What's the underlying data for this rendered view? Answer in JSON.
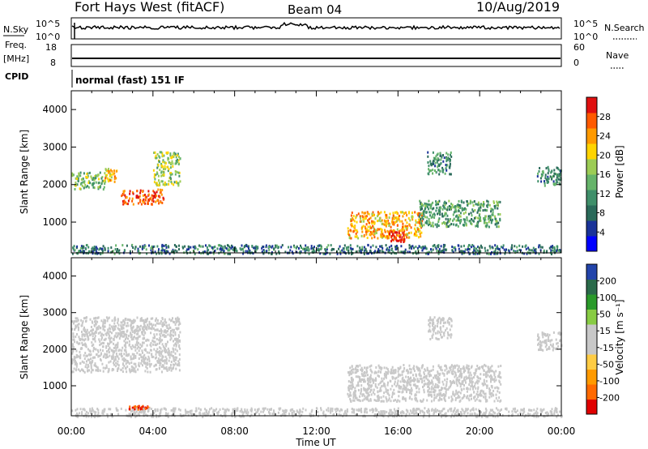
{
  "header": {
    "title": "Fort Hays West (fitACF)",
    "beam": "Beam 04",
    "date": "10/Aug/2019"
  },
  "noise_panel": {
    "label": "N.Sky",
    "left_ticks": [
      "10^5",
      "10^0"
    ],
    "right_ticks": [
      "10^5",
      "10^0"
    ],
    "right_label": "N.Search"
  },
  "freq_panel": {
    "label_line1": "Freq.",
    "label_line2": "[MHz]",
    "left_ticks": [
      "18",
      "8"
    ],
    "right_ticks": [
      "60",
      "0"
    ],
    "right_label": "Nave"
  },
  "cpid": {
    "label": "CPID",
    "text": "normal (fast) 151 IF"
  },
  "colors": {
    "power_scale": [
      "#0000ff",
      "#1a3399",
      "#2a6a5a",
      "#3f8f6a",
      "#66b46a",
      "#9ccc55",
      "#ffd400",
      "#ff9a00",
      "#ff5a00",
      "#e01010"
    ],
    "velocity_scale": [
      "#e00000",
      "#ff6a00",
      "#ff9a00",
      "#ffcc44",
      "#c8c8c8",
      "#c8c8c8",
      "#88cc44",
      "#2a9a2a",
      "#2a6a4a",
      "#2244aa"
    ]
  },
  "chart_data": [
    {
      "type": "heatmap",
      "title": "",
      "xlabel": "",
      "ylabel": "Slant Range [km]",
      "xlim": [
        "00:00",
        "24:00"
      ],
      "ylim": [
        180,
        4500
      ],
      "x_ticks": [
        "00:00",
        "04:00",
        "08:00",
        "12:00",
        "16:00",
        "20:00",
        "00:00"
      ],
      "y_ticks": [
        1000,
        2000,
        3000,
        4000
      ],
      "colorbar": {
        "label": "Power [dB]",
        "ticks": [
          "4",
          "8",
          "12",
          "16",
          "20",
          "24",
          "28"
        ],
        "range": [
          0,
          30
        ]
      },
      "features": [
        {
          "start_h": 0.0,
          "end_h": 1.6,
          "range_km": [
            1900,
            2350
          ],
          "value": 14
        },
        {
          "start_h": 1.6,
          "end_h": 2.2,
          "range_km": [
            2100,
            2450
          ],
          "value": 20
        },
        {
          "start_h": 2.4,
          "end_h": 4.5,
          "range_km": [
            1500,
            1900
          ],
          "value": 26
        },
        {
          "start_h": 4.0,
          "end_h": 5.3,
          "range_km": [
            2000,
            2900
          ],
          "value": 16
        },
        {
          "start_h": 13.5,
          "end_h": 17.2,
          "range_km": [
            600,
            1300
          ],
          "value": 22
        },
        {
          "start_h": 15.5,
          "end_h": 16.3,
          "range_km": [
            500,
            800
          ],
          "value": 28
        },
        {
          "start_h": 17.0,
          "end_h": 21.0,
          "range_km": [
            900,
            1600
          ],
          "value": 12
        },
        {
          "start_h": 17.4,
          "end_h": 18.6,
          "range_km": [
            2300,
            2900
          ],
          "value": 10
        },
        {
          "start_h": 22.8,
          "end_h": 24.0,
          "range_km": [
            2000,
            2500
          ],
          "value": 10
        },
        {
          "start_h": 0.0,
          "end_h": 24.0,
          "range_km": [
            180,
            420
          ],
          "value": 8
        }
      ]
    },
    {
      "type": "heatmap",
      "title": "",
      "xlabel": "Time UT",
      "ylabel": "Slant Range [km]",
      "xlim": [
        "00:00",
        "24:00"
      ],
      "ylim": [
        180,
        4500
      ],
      "x_ticks": [
        "00:00",
        "04:00",
        "08:00",
        "12:00",
        "16:00",
        "20:00",
        "00:00"
      ],
      "y_ticks": [
        1000,
        2000,
        3000,
        4000
      ],
      "colorbar": {
        "label": "Velocity [m s⁻¹]",
        "ticks": [
          "200",
          "100",
          "50",
          "15",
          "-15",
          "-50",
          "-100",
          "-200"
        ],
        "range": [
          -250,
          250
        ]
      },
      "features": [
        {
          "start_h": 0.0,
          "end_h": 5.3,
          "range_km": [
            1400,
            2900
          ],
          "value": 0
        },
        {
          "start_h": 2.8,
          "end_h": 3.8,
          "range_km": [
            380,
            480
          ],
          "value": -200
        },
        {
          "start_h": 13.5,
          "end_h": 21.0,
          "range_km": [
            600,
            1600
          ],
          "value": 0
        },
        {
          "start_h": 17.4,
          "end_h": 18.6,
          "range_km": [
            2300,
            2900
          ],
          "value": 0
        },
        {
          "start_h": 22.8,
          "end_h": 24.0,
          "range_km": [
            2000,
            2500
          ],
          "value": 0
        },
        {
          "start_h": 0.0,
          "end_h": 24.0,
          "range_km": [
            180,
            420
          ],
          "value": 20
        }
      ]
    }
  ]
}
